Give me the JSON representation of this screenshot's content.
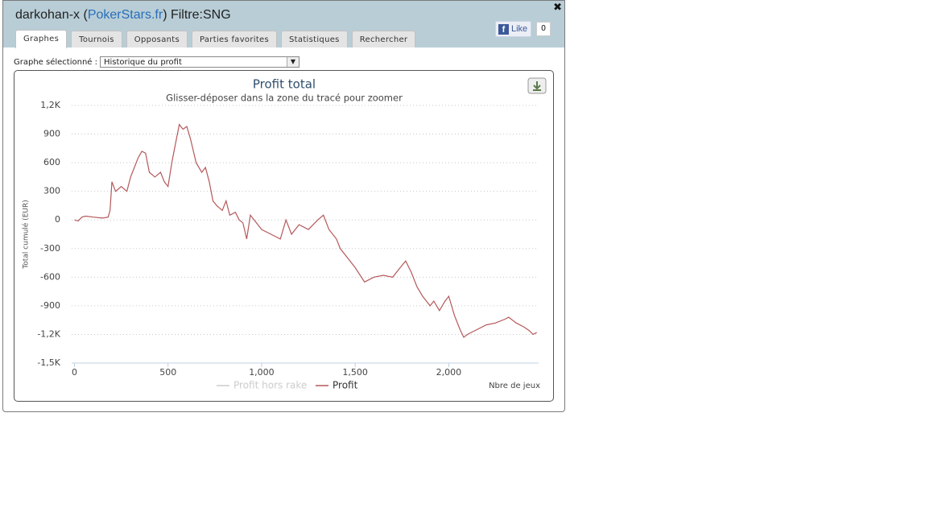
{
  "header": {
    "title_before": "darkohan-x (",
    "link": "PokerStars.fr",
    "title_after": ") Filtre:SNG",
    "like": "Like",
    "like_count": "0"
  },
  "tabs": [
    "Graphes",
    "Tournois",
    "Opposants",
    "Parties favorites",
    "Statistiques",
    "Rechercher"
  ],
  "selector": {
    "label": "Graphe sélectionné :",
    "value": "Historique du profit"
  },
  "chart_data": {
    "type": "line",
    "title": "Profit total",
    "subtitle": "Glisser-déposer dans la zone du tracé pour zoomer",
    "y_label": "Total cumulé (EUR)",
    "x_label": "Nbre de jeux",
    "xlim": [
      -15,
      2480
    ],
    "ylim": [
      -1500,
      1200
    ],
    "xticks": [
      0,
      500,
      {
        "value": 1000,
        "label": "1,000"
      },
      {
        "value": 1500,
        "label": "1,500"
      },
      {
        "value": 2000,
        "label": "2,000"
      }
    ],
    "yticks": [
      {
        "value": 1200,
        "label": "1,2K"
      },
      900,
      600,
      300,
      0,
      -300,
      -600,
      -900,
      {
        "value": -1200,
        "label": "-1,2K"
      },
      {
        "value": -1500,
        "label": "-1,5K"
      }
    ],
    "grid": true,
    "x": [
      0,
      20,
      40,
      60,
      100,
      150,
      180,
      190,
      200,
      220,
      250,
      280,
      300,
      320,
      340,
      360,
      380,
      400,
      430,
      460,
      480,
      500,
      520,
      540,
      560,
      580,
      600,
      620,
      650,
      680,
      700,
      720,
      740,
      760,
      790,
      810,
      830,
      860,
      880,
      900,
      920,
      940,
      960,
      980,
      1000,
      1050,
      1100,
      1130,
      1160,
      1200,
      1250,
      1300,
      1330,
      1360,
      1400,
      1420,
      1460,
      1500,
      1550,
      1600,
      1650,
      1700,
      1740,
      1770,
      1800,
      1830,
      1860,
      1900,
      1920,
      1950,
      1980,
      2000,
      2030,
      2060,
      2080,
      2100,
      2150,
      2200,
      2250,
      2300,
      2320,
      2360,
      2400,
      2430,
      2450,
      2470
    ],
    "series": [
      {
        "name": "Profit hors rake",
        "color": "#cccccc",
        "visible": false,
        "values": [
          null,
          null,
          null,
          null,
          null,
          null,
          null,
          null,
          null,
          null,
          null,
          null,
          null,
          null,
          null,
          null,
          null,
          null,
          null,
          null,
          null,
          null,
          null,
          null,
          null,
          null,
          null,
          null,
          null,
          null,
          null,
          null,
          null,
          null,
          null,
          null,
          null,
          null,
          null,
          null,
          null,
          null,
          null,
          null,
          null,
          null,
          null,
          null,
          null,
          null,
          null,
          null,
          null,
          null,
          null,
          null,
          null,
          null,
          null,
          null,
          null,
          null,
          null,
          null,
          null,
          null,
          null,
          null,
          null,
          null,
          null,
          null,
          null,
          null,
          null,
          null,
          null,
          null,
          null,
          null,
          null,
          null,
          null,
          null,
          null,
          null
        ]
      },
      {
        "name": "Profit",
        "color": "#b5585a",
        "visible": true,
        "values": [
          0,
          -10,
          30,
          40,
          30,
          20,
          30,
          100,
          400,
          300,
          350,
          300,
          450,
          550,
          650,
          720,
          700,
          500,
          450,
          500,
          400,
          350,
          600,
          800,
          1000,
          950,
          980,
          850,
          600,
          500,
          550,
          400,
          200,
          150,
          100,
          200,
          50,
          80,
          0,
          -30,
          -200,
          50,
          0,
          -50,
          -100,
          -150,
          -200,
          0,
          -150,
          -50,
          -100,
          0,
          50,
          -100,
          -200,
          -300,
          -400,
          -500,
          -650,
          -600,
          -580,
          -600,
          -500,
          -430,
          -550,
          -700,
          -800,
          -900,
          -850,
          -950,
          -850,
          -800,
          -1000,
          -1150,
          -1230,
          -1200,
          -1150,
          -1100,
          -1080,
          -1040,
          -1020,
          -1080,
          -1120,
          -1160,
          -1200,
          -1180
        ]
      }
    ]
  }
}
